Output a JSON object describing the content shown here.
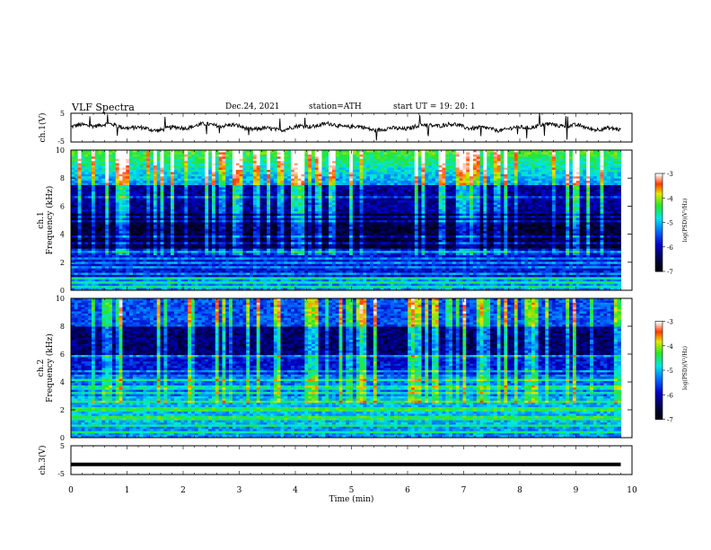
{
  "header": {
    "title": "VLF  Spectra",
    "date": "Dec.24, 2021",
    "station": "station=ATH",
    "start_ut": "start  UT  =   19: 20: 1"
  },
  "chart_data": [
    {
      "type": "line",
      "panel": "ch1-waveform",
      "ylabel": "ch.1(V)",
      "ylim": [
        -5,
        5
      ],
      "y_ticks": [
        "5",
        "-5"
      ],
      "description_values": {
        "baseline_v": 0.2,
        "noise_amplitude_v": 0.6,
        "spike_count": 14
      }
    },
    {
      "type": "heatmap",
      "panel": "ch1-spectrogram",
      "ylabel": "ch.1\nFrequency  (kHz)",
      "ylabel_line1": "ch.1",
      "ylabel_line2": "Frequency  (kHz)",
      "ylim": [
        0,
        10
      ],
      "y_ticks": [
        "0",
        "2",
        "4",
        "6",
        "8",
        "10"
      ],
      "colorbar": {
        "label": "log(PSD)(V²/Hz)",
        "range": [
          -7,
          -3
        ],
        "ticks": [
          "-3",
          "-4",
          "-5",
          "-6",
          "-7"
        ]
      }
    },
    {
      "type": "heatmap",
      "panel": "ch2-spectrogram",
      "ylabel": "ch.2\nFrequency  (kHz)",
      "ylabel_line1": "ch.2",
      "ylabel_line2": "Frequency  (kHz)",
      "ylim": [
        0,
        10
      ],
      "y_ticks": [
        "0",
        "2",
        "4",
        "6",
        "8",
        "10"
      ],
      "colorbar": {
        "label": "log(PSD)(V²/Hz)",
        "range": [
          -7,
          -3
        ],
        "ticks": [
          "-3",
          "-4",
          "-5",
          "-6",
          "-7"
        ]
      }
    },
    {
      "type": "line",
      "panel": "ch3-waveform",
      "ylabel": "ch.3(V)",
      "ylim": [
        -5,
        5
      ],
      "y_ticks": [
        "5",
        "-5"
      ],
      "description_values": {
        "constant_v": -1.5
      }
    }
  ],
  "x_axis": {
    "label": "Time  (min)",
    "range": [
      0,
      10
    ],
    "data_end": 9.8,
    "ticks": [
      "0",
      "1",
      "2",
      "3",
      "4",
      "5",
      "6",
      "7",
      "8",
      "9",
      "10"
    ]
  }
}
